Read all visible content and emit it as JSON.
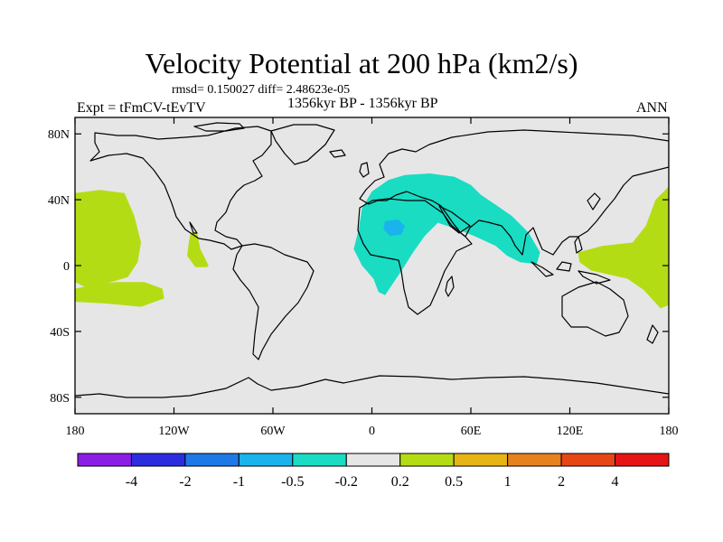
{
  "chart_data": {
    "type": "heatmap",
    "title": "Velocity Potential at 200 hPa (km2/s)",
    "stats": "rmsd= 0.150027 diff= 2.48623e-05",
    "left_label": "Expt = tFmCV-tEvTV",
    "center_label": "1356kyr BP - 1356kyr BP",
    "right_label": "ANN",
    "xlim": [
      -180,
      180
    ],
    "ylim": [
      -90,
      90
    ],
    "x_ticks": [
      {
        "value": -180,
        "label": "180"
      },
      {
        "value": -120,
        "label": "120W"
      },
      {
        "value": -60,
        "label": "60W"
      },
      {
        "value": 0,
        "label": "0"
      },
      {
        "value": 60,
        "label": "60E"
      },
      {
        "value": 120,
        "label": "120E"
      },
      {
        "value": 180,
        "label": "180"
      }
    ],
    "y_ticks": [
      {
        "value": 80,
        "label": "80N"
      },
      {
        "value": 40,
        "label": "40N"
      },
      {
        "value": 0,
        "label": "0"
      },
      {
        "value": -40,
        "label": "40S"
      },
      {
        "value": -80,
        "label": "80S"
      }
    ],
    "colorbar": {
      "labels": [
        "-4",
        "-2",
        "-1",
        "-0.5",
        "-0.2",
        "0.2",
        "0.5",
        "1",
        "2",
        "4"
      ],
      "colors": [
        "#8a1ee6",
        "#2d2de0",
        "#1e78e6",
        "#19b4eb",
        "#19dcc3",
        "#e6e6e6",
        "#b4dc14",
        "#e6b414",
        "#e6821e",
        "#e64614",
        "#e61414"
      ]
    },
    "regions": [
      {
        "name": "negative-anomaly-eurasia-africa",
        "level": "-0.5 to -0.2",
        "color": "#19dcc3",
        "outline": [
          [
            -8,
            22
          ],
          [
            -6,
            35
          ],
          [
            0,
            45
          ],
          [
            10,
            52
          ],
          [
            20,
            55
          ],
          [
            35,
            56
          ],
          [
            50,
            54
          ],
          [
            60,
            49
          ],
          [
            66,
            43
          ],
          [
            75,
            37
          ],
          [
            85,
            30
          ],
          [
            95,
            20
          ],
          [
            102,
            8
          ],
          [
            100,
            1
          ],
          [
            90,
            2
          ],
          [
            82,
            6
          ],
          [
            75,
            12
          ],
          [
            62,
            18
          ],
          [
            52,
            22
          ],
          [
            40,
            26
          ],
          [
            32,
            18
          ],
          [
            25,
            8
          ],
          [
            18,
            -3
          ],
          [
            12,
            -12
          ],
          [
            8,
            -18
          ],
          [
            4,
            -16
          ],
          [
            1,
            -8
          ],
          [
            -6,
            0
          ],
          [
            -11,
            10
          ]
        ]
      },
      {
        "name": "negative-anomaly-core-africa",
        "level": "-1 to -0.5",
        "color": "#19b4eb",
        "outline": [
          [
            8,
            27
          ],
          [
            16,
            28
          ],
          [
            20,
            24
          ],
          [
            18,
            19
          ],
          [
            11,
            18
          ],
          [
            7,
            22
          ]
        ]
      },
      {
        "name": "positive-anomaly-central-pacific",
        "level": "0.2 to 0.5",
        "color": "#b4dc14",
        "outline": [
          [
            -180,
            44
          ],
          [
            -165,
            46
          ],
          [
            -150,
            44
          ],
          [
            -144,
            30
          ],
          [
            -140,
            14
          ],
          [
            -142,
            2
          ],
          [
            -148,
            -7
          ],
          [
            -158,
            -10
          ],
          [
            -172,
            -14
          ],
          [
            -180,
            -10
          ]
        ]
      },
      {
        "name": "positive-anomaly-south-pacific",
        "level": "0.2 to 0.5",
        "color": "#b4dc14",
        "outline": [
          [
            -180,
            -14
          ],
          [
            -170,
            -12
          ],
          [
            -155,
            -10
          ],
          [
            -138,
            -10
          ],
          [
            -127,
            -14
          ],
          [
            -126,
            -20
          ],
          [
            -140,
            -25
          ],
          [
            -162,
            -23
          ],
          [
            -180,
            -22
          ]
        ]
      },
      {
        "name": "positive-anomaly-eastern-pacific",
        "level": "0.2 to 0.5",
        "color": "#b4dc14",
        "outline": [
          [
            -110,
            20
          ],
          [
            -106,
            20
          ],
          [
            -104,
            10
          ],
          [
            -99,
            0
          ],
          [
            -100,
            -1
          ],
          [
            -107,
            -1
          ],
          [
            -112,
            6
          ],
          [
            -111,
            14
          ]
        ]
      },
      {
        "name": "positive-anomaly-west-pacific",
        "level": "0.2 to 0.5",
        "color": "#b4dc14",
        "outline": [
          [
            125,
            8
          ],
          [
            140,
            12
          ],
          [
            158,
            14
          ],
          [
            166,
            24
          ],
          [
            172,
            40
          ],
          [
            180,
            48
          ],
          [
            180,
            -24
          ],
          [
            175,
            -26
          ],
          [
            165,
            -15
          ],
          [
            155,
            -8
          ],
          [
            142,
            -5
          ],
          [
            133,
            -3
          ],
          [
            126,
            2
          ]
        ]
      }
    ]
  }
}
